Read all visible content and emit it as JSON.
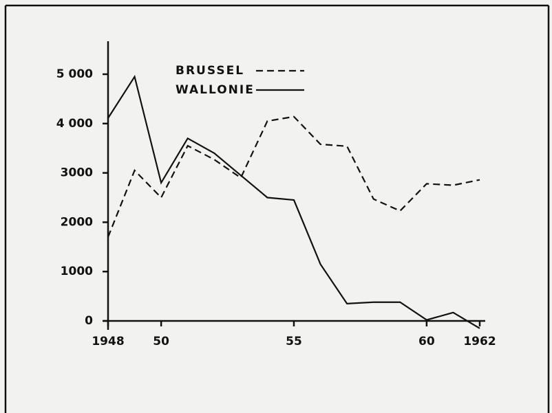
{
  "chart_data": {
    "type": "line",
    "x": [
      1948,
      1949,
      1950,
      1951,
      1952,
      1953,
      1954,
      1955,
      1956,
      1957,
      1958,
      1959,
      1960,
      1961,
      1962
    ],
    "series": [
      {
        "name": "BRUSSEL",
        "color": "#111111",
        "linestyle": "dashed",
        "values": [
          1700,
          3050,
          2500,
          3550,
          3270,
          2900,
          4050,
          4140,
          3580,
          3540,
          2470,
          2230,
          2780,
          2750,
          2860
        ]
      },
      {
        "name": "WALLONIE",
        "color": "#111111",
        "linestyle": "solid",
        "values": [
          4110,
          4950,
          2800,
          3700,
          3400,
          2950,
          2500,
          2450,
          1150,
          350,
          380,
          380,
          20,
          170,
          -150
        ]
      }
    ],
    "xlim": [
      1948,
      1962
    ],
    "xticks": [
      1948,
      {
        "value": 1950,
        "label": "50"
      },
      {
        "value": 1955,
        "label": "55"
      },
      {
        "value": 1960,
        "label": "60"
      },
      1962
    ],
    "ylim": [
      0,
      5000
    ],
    "yticks": [
      0,
      1000,
      2000,
      3000,
      {
        "value": 4000,
        "label": "4 000"
      },
      {
        "value": 5000,
        "label": "5 000"
      }
    ]
  }
}
